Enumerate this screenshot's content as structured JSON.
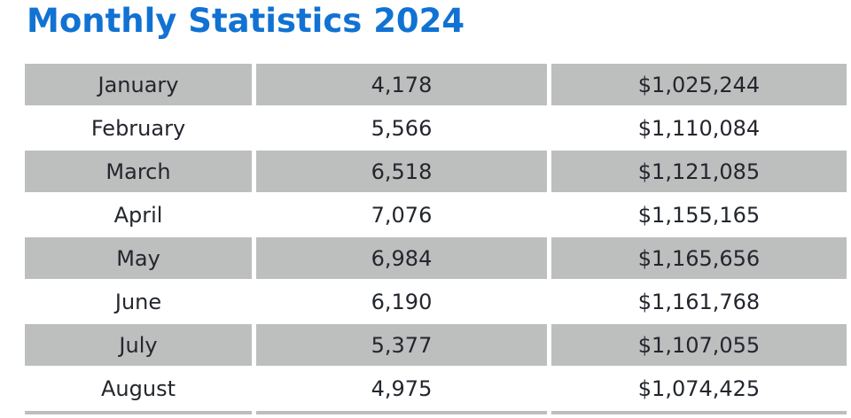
{
  "page": {
    "title": "Monthly Statistics 2024"
  },
  "colors": {
    "title_blue": "#1172d3",
    "row_gray": "#bdbebe",
    "text": "#23262d",
    "background": "#ffffff"
  },
  "table": {
    "columns": [
      "month",
      "count",
      "amount"
    ],
    "rows": [
      {
        "month": "January",
        "count": "4,178",
        "amount": "$1,025,244"
      },
      {
        "month": "February",
        "count": "5,566",
        "amount": "$1,110,084"
      },
      {
        "month": "March",
        "count": "6,518",
        "amount": "$1,121,085"
      },
      {
        "month": "April",
        "count": "7,076",
        "amount": "$1,155,165"
      },
      {
        "month": "May",
        "count": "6,984",
        "amount": "$1,165,656"
      },
      {
        "month": "June",
        "count": "6,190",
        "amount": "$1,161,768"
      },
      {
        "month": "July",
        "count": "5,377",
        "amount": "$1,107,055"
      },
      {
        "month": "August",
        "count": "4,975",
        "amount": "$1,074,425"
      }
    ]
  },
  "chart_data": {
    "type": "table",
    "title": "Monthly Statistics 2024",
    "categories": [
      "January",
      "February",
      "March",
      "April",
      "May",
      "June",
      "July",
      "August"
    ],
    "series": [
      {
        "name": "count",
        "values": [
          4178,
          5566,
          6518,
          7076,
          6984,
          6190,
          5377,
          4975
        ]
      },
      {
        "name": "amount_usd",
        "values": [
          1025244,
          1110084,
          1121085,
          1155165,
          1165656,
          1161768,
          1107055,
          1074425
        ]
      }
    ]
  }
}
